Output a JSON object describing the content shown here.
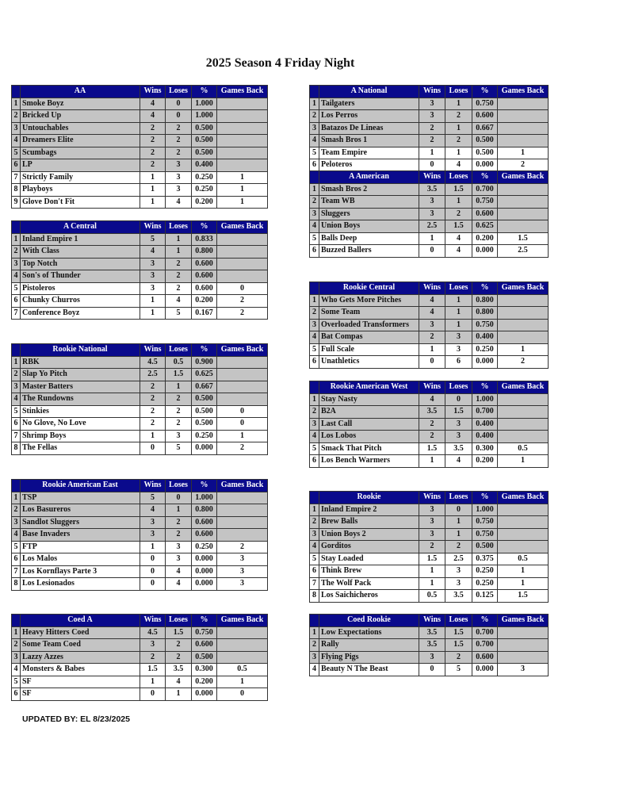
{
  "title": "2025 Season 4 Friday Night",
  "updated": "UPDATED BY: EL 8/23/2025",
  "colors": {
    "header_bg": "#0a0a8c",
    "header_text": "#ffffff",
    "shaded_row": "#c4c4c4"
  },
  "columns": {
    "wins": "Wins",
    "loses": "Loses",
    "pct": "%",
    "gb": "Games Back"
  },
  "tables": [
    {
      "name": "AA",
      "side": "L",
      "shaded": 6,
      "rows": [
        [
          "1",
          "Smoke Boyz",
          "4",
          "0",
          "1.000",
          ""
        ],
        [
          "2",
          "Bricked Up",
          "4",
          "0",
          "1.000",
          ""
        ],
        [
          "3",
          "Untouchables",
          "2",
          "2",
          "0.500",
          ""
        ],
        [
          "4",
          "Dreamers Elite",
          "2",
          "2",
          "0.500",
          ""
        ],
        [
          "5",
          "Scumbags",
          "2",
          "2",
          "0.500",
          ""
        ],
        [
          "6",
          "LP",
          "2",
          "3",
          "0.400",
          ""
        ],
        [
          "7",
          "Strictly Family",
          "1",
          "3",
          "0.250",
          "1"
        ],
        [
          "8",
          "Playboys",
          "1",
          "3",
          "0.250",
          "1"
        ],
        [
          "9",
          "Glove Don't Fit",
          "1",
          "4",
          "0.200",
          "1"
        ]
      ]
    },
    {
      "name": "A Central",
      "side": "L",
      "shaded": 4,
      "rows": [
        [
          "1",
          "Inland Empire 1",
          "5",
          "1",
          "0.833",
          ""
        ],
        [
          "2",
          "With Class",
          "4",
          "1",
          "0.800",
          ""
        ],
        [
          "3",
          "Top Notch",
          "3",
          "2",
          "0.600",
          ""
        ],
        [
          "4",
          "Son's of Thunder",
          "3",
          "2",
          "0.600",
          ""
        ],
        [
          "5",
          "Pistoleros",
          "3",
          "2",
          "0.600",
          "0"
        ],
        [
          "6",
          "Chunky Churros",
          "1",
          "4",
          "0.200",
          "2"
        ],
        [
          "7",
          "Conference Boyz",
          "1",
          "5",
          "0.167",
          "2"
        ]
      ]
    },
    {
      "name": "Rookie National",
      "side": "L",
      "shaded": 4,
      "rows": [
        [
          "1",
          "RBK",
          "4.5",
          "0.5",
          "0.900",
          ""
        ],
        [
          "2",
          "Slap Yo Pitch",
          "2.5",
          "1.5",
          "0.625",
          ""
        ],
        [
          "3",
          "Master Batters",
          "2",
          "1",
          "0.667",
          ""
        ],
        [
          "4",
          "The Rundowns",
          "2",
          "2",
          "0.500",
          ""
        ],
        [
          "5",
          "Stinkies",
          "2",
          "2",
          "0.500",
          "0"
        ],
        [
          "6",
          "No Glove, No Love",
          "2",
          "2",
          "0.500",
          "0"
        ],
        [
          "7",
          "Shrimp Boys",
          "1",
          "3",
          "0.250",
          "1"
        ],
        [
          "8",
          "The Fellas",
          "0",
          "5",
          "0.000",
          "2"
        ]
      ]
    },
    {
      "name": "Rookie American East",
      "side": "L",
      "shaded": 4,
      "rows": [
        [
          "1",
          "TSP",
          "5",
          "0",
          "1.000",
          ""
        ],
        [
          "2",
          "Los Basureros",
          "4",
          "1",
          "0.800",
          ""
        ],
        [
          "3",
          "Sandlot Sluggers",
          "3",
          "2",
          "0.600",
          ""
        ],
        [
          "4",
          "Base Invaders",
          "3",
          "2",
          "0.600",
          ""
        ],
        [
          "5",
          "FTP",
          "1",
          "3",
          "0.250",
          "2"
        ],
        [
          "6",
          "Los Malos",
          "0",
          "3",
          "0.000",
          "3"
        ],
        [
          "7",
          "Los Kornflays Parte 3",
          "0",
          "4",
          "0.000",
          "3"
        ],
        [
          "8",
          "Los Lesionados",
          "0",
          "4",
          "0.000",
          "3"
        ]
      ]
    },
    {
      "name": "Coed A",
      "side": "L",
      "shaded": 3,
      "rows": [
        [
          "1",
          "Heavy Hitters Coed",
          "4.5",
          "1.5",
          "0.750",
          ""
        ],
        [
          "2",
          "Some Team Coed",
          "3",
          "2",
          "0.600",
          ""
        ],
        [
          "3",
          "Lazzy Azzes",
          "2",
          "2",
          "0.500",
          ""
        ],
        [
          "4",
          "Monsters & Babes",
          "1.5",
          "3.5",
          "0.300",
          "0.5"
        ],
        [
          "5",
          "SF",
          "1",
          "4",
          "0.200",
          "1"
        ],
        [
          "6",
          "SF",
          "0",
          "1",
          "0.000",
          "0"
        ]
      ]
    },
    {
      "name": "A National",
      "side": "R",
      "shaded": 4,
      "rows": [
        [
          "1",
          "Tailgaters",
          "3",
          "1",
          "0.750",
          ""
        ],
        [
          "2",
          "Los Perros",
          "3",
          "2",
          "0.600",
          ""
        ],
        [
          "3",
          "Batazos De Lineas",
          "2",
          "1",
          "0.667",
          ""
        ],
        [
          "4",
          "Smash Bros 1",
          "2",
          "2",
          "0.500",
          ""
        ],
        [
          "5",
          "Team Empire",
          "1",
          "1",
          "0.500",
          "1"
        ],
        [
          "6",
          "Peloteros",
          "0",
          "4",
          "0.000",
          "2"
        ]
      ]
    },
    {
      "name": "A American",
      "side": "R",
      "shaded": 4,
      "rows": [
        [
          "1",
          "Smash Bros 2",
          "3.5",
          "1.5",
          "0.700",
          ""
        ],
        [
          "2",
          "Team WB",
          "3",
          "1",
          "0.750",
          ""
        ],
        [
          "3",
          "Sluggers",
          "3",
          "2",
          "0.600",
          ""
        ],
        [
          "4",
          "Union Boys",
          "2.5",
          "1.5",
          "0.625",
          ""
        ],
        [
          "5",
          "Balls Deep",
          "1",
          "4",
          "0.200",
          "1.5"
        ],
        [
          "6",
          "Buzzed Ballers",
          "0",
          "4",
          "0.000",
          "2.5"
        ]
      ]
    },
    {
      "name": "Rookie Central",
      "side": "R",
      "shaded": 4,
      "rows": [
        [
          "1",
          "Who Gets More Pitches",
          "4",
          "1",
          "0.800",
          ""
        ],
        [
          "2",
          "Some Team",
          "4",
          "1",
          "0.800",
          ""
        ],
        [
          "3",
          "Overloaded Transformers",
          "3",
          "1",
          "0.750",
          ""
        ],
        [
          "4",
          "Bat Compas",
          "2",
          "3",
          "0.400",
          ""
        ],
        [
          "5",
          "Full Scale",
          "1",
          "3",
          "0.250",
          "1"
        ],
        [
          "6",
          "Unathletics",
          "0",
          "6",
          "0.000",
          "2"
        ]
      ]
    },
    {
      "name": "Rookie American West",
      "side": "R",
      "shaded": 4,
      "rows": [
        [
          "1",
          "Stay Nasty",
          "4",
          "0",
          "1.000",
          ""
        ],
        [
          "2",
          "B2A",
          "3.5",
          "1.5",
          "0.700",
          ""
        ],
        [
          "3",
          "Last Call",
          "2",
          "3",
          "0.400",
          ""
        ],
        [
          "4",
          "Los Lobos",
          "2",
          "3",
          "0.400",
          ""
        ],
        [
          "5",
          "Smack That Pitch",
          "1.5",
          "3.5",
          "0.300",
          "0.5"
        ],
        [
          "6",
          "Los Bench Warmers",
          "1",
          "4",
          "0.200",
          "1"
        ]
      ]
    },
    {
      "name": "Rookie",
      "side": "R",
      "shaded": 4,
      "rows": [
        [
          "1",
          "Inland Empire 2",
          "3",
          "0",
          "1.000",
          ""
        ],
        [
          "2",
          "Brew Balls",
          "3",
          "1",
          "0.750",
          ""
        ],
        [
          "3",
          "Union Boys 2",
          "3",
          "1",
          "0.750",
          ""
        ],
        [
          "4",
          "Gorditos",
          "2",
          "2",
          "0.500",
          ""
        ],
        [
          "5",
          "Stay Loaded",
          "1.5",
          "2.5",
          "0.375",
          "0.5"
        ],
        [
          "6",
          "Think Brew",
          "1",
          "3",
          "0.250",
          "1"
        ],
        [
          "7",
          "The Wolf Pack",
          "1",
          "3",
          "0.250",
          "1"
        ],
        [
          "8",
          "Los Saichicheros",
          "0.5",
          "3.5",
          "0.125",
          "1.5"
        ]
      ]
    },
    {
      "name": "Coed Rookie",
      "side": "R",
      "shaded": 3,
      "rows": [
        [
          "1",
          "Low Expectations",
          "3.5",
          "1.5",
          "0.700",
          ""
        ],
        [
          "2",
          "Rally",
          "3.5",
          "1.5",
          "0.700",
          ""
        ],
        [
          "3",
          "Flying Pigs",
          "3",
          "2",
          "0.600",
          ""
        ],
        [
          "4",
          "Beauty N The Beast",
          "0",
          "5",
          "0.000",
          "3"
        ]
      ]
    }
  ]
}
